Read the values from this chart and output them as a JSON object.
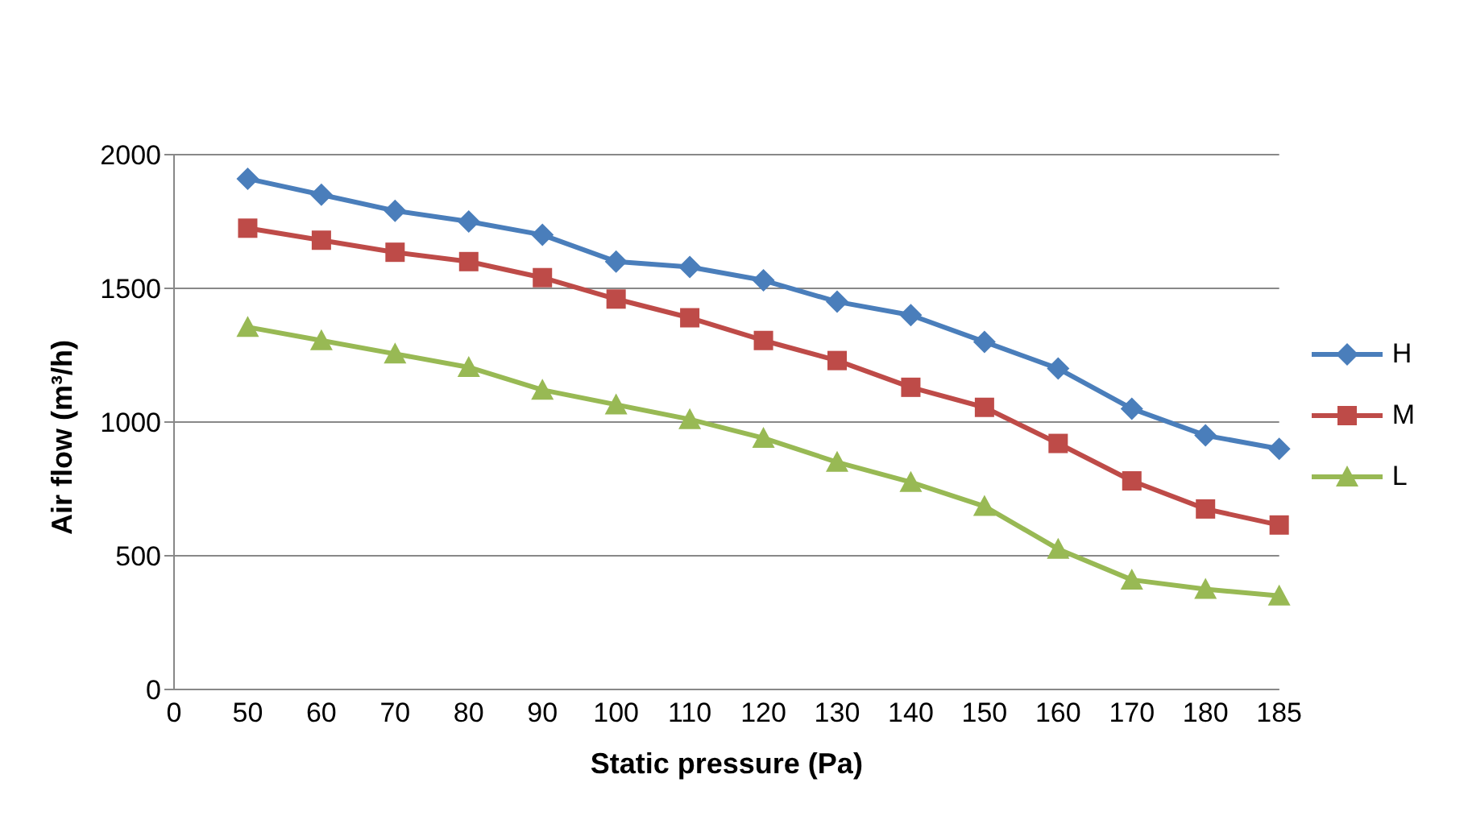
{
  "chart_data": {
    "type": "line",
    "xlabel": "Static pressure (Pa)",
    "ylabel": "Air flow (m³/h)",
    "categories": [
      "0",
      "50",
      "60",
      "70",
      "80",
      "90",
      "100",
      "110",
      "120",
      "130",
      "140",
      "150",
      "160",
      "170",
      "180",
      "185"
    ],
    "series": [
      {
        "name": "H",
        "color": "#4a7ebb",
        "marker": "diamond",
        "values": [
          null,
          1910,
          1850,
          1790,
          1750,
          1700,
          1600,
          1580,
          1530,
          1450,
          1400,
          1300,
          1200,
          1050,
          950,
          900
        ]
      },
      {
        "name": "M",
        "color": "#be4b48",
        "marker": "square",
        "values": [
          null,
          1725,
          1680,
          1635,
          1600,
          1540,
          1460,
          1390,
          1305,
          1230,
          1130,
          1055,
          920,
          780,
          675,
          615
        ]
      },
      {
        "name": "L",
        "color": "#98b954",
        "marker": "triangle",
        "values": [
          null,
          1355,
          1305,
          1255,
          1205,
          1120,
          1065,
          1010,
          940,
          850,
          775,
          685,
          525,
          410,
          375,
          350
        ]
      }
    ],
    "ylim": [
      0,
      2000
    ],
    "yticks": [
      0,
      500,
      1000,
      1500,
      2000
    ],
    "grid": "y",
    "legend": "right",
    "line_style": "solid"
  }
}
